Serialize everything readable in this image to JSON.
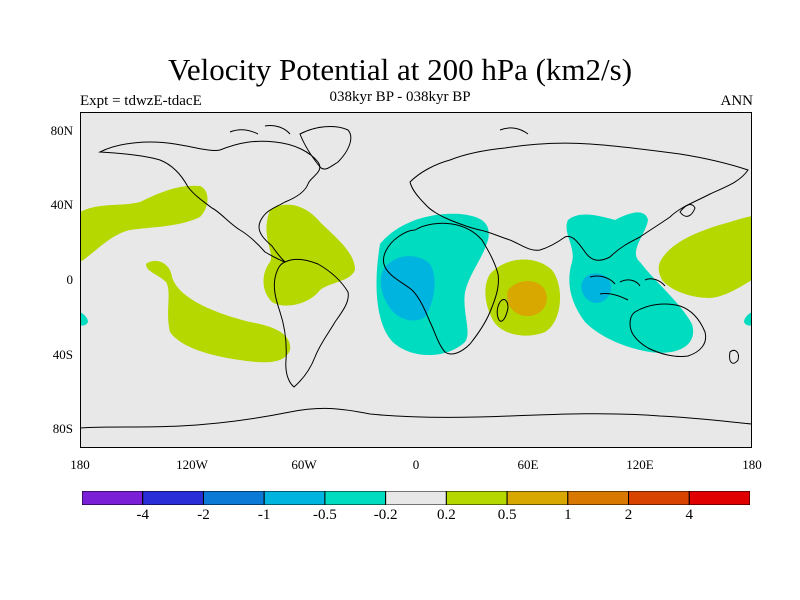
{
  "title": "Velocity Potential at 200 hPa (km2/s)",
  "subtitle_center": "038kyr BP - 038kyr BP",
  "subtitle_left": "Expt = tdwzE-tdacE",
  "subtitle_right": "ANN",
  "map": {
    "projection": "cylindrical-equidistant",
    "lon_range": [
      -180,
      180
    ],
    "lat_range": [
      -90,
      90
    ],
    "background_color": "#e8e8e8",
    "coastline_color": "#000000",
    "y_ticks": [
      {
        "label": "80N",
        "lat": 80
      },
      {
        "label": "40N",
        "lat": 40
      },
      {
        "label": "0",
        "lat": 0
      },
      {
        "label": "40S",
        "lat": -40
      },
      {
        "label": "80S",
        "lat": -80
      }
    ],
    "x_ticks": [
      {
        "label": "180",
        "lon": -180
      },
      {
        "label": "120W",
        "lon": -120
      },
      {
        "label": "60W",
        "lon": -60
      },
      {
        "label": "0",
        "lon": 0
      },
      {
        "label": "60E",
        "lon": 60
      },
      {
        "label": "120E",
        "lon": 120
      },
      {
        "label": "180",
        "lon": 180
      }
    ]
  },
  "colorbar": {
    "colors": [
      "#7b1fd6",
      "#2a2ed6",
      "#0a7ad6",
      "#00b4e0",
      "#00dcc0",
      "#e8e8e8",
      "#b4d800",
      "#d8a800",
      "#d87800",
      "#d84400",
      "#e00000"
    ],
    "labels": [
      "-4",
      "-2",
      "-1",
      "-0.5",
      "-0.2",
      "0.2",
      "0.5",
      "1",
      "2",
      "4"
    ]
  }
}
